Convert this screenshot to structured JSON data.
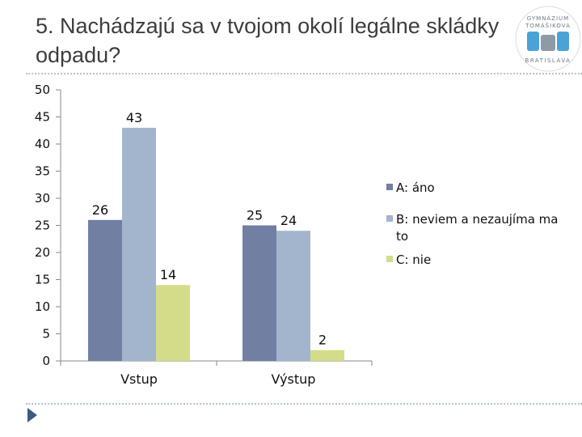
{
  "slide": {
    "title": "5. Nachádzajú sa v tvojom okolí legálne skládky odpadu?"
  },
  "logo": {
    "text_top": "GYMNÁZIUM TOMÁŠIKOVA",
    "text_bottom": "BRATISLAVA",
    "colors": {
      "blue": "#4aa3d6",
      "gray": "#8e9aa6"
    }
  },
  "chart_data": {
    "type": "bar",
    "categories": [
      "Vstup",
      "Výstup"
    ],
    "series": [
      {
        "name": "A: áno",
        "values": [
          26,
          25
        ],
        "color": "#717fa3"
      },
      {
        "name": "B: neviem a nezaujíma ma to",
        "values": [
          43,
          24
        ],
        "color": "#a2b5cc"
      },
      {
        "name": "C: nie",
        "values": [
          14,
          2
        ],
        "color": "#d4dc8a"
      }
    ],
    "ylim": [
      0,
      50
    ],
    "yticks": [
      0,
      5,
      10,
      15,
      20,
      25,
      30,
      35,
      40,
      45,
      50
    ],
    "data_labels": true,
    "legend_position": "right",
    "grid": false
  },
  "nav": {
    "icon": "next-slide-arrow-icon"
  }
}
